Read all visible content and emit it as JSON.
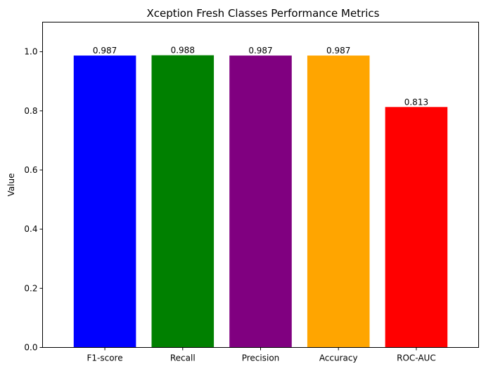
{
  "chart_data": {
    "type": "bar",
    "title": "Xception Fresh Classes Performance Metrics",
    "xlabel": "",
    "ylabel": "Value",
    "categories": [
      "F1-score",
      "Recall",
      "Precision",
      "Accuracy",
      "ROC-AUC"
    ],
    "values": [
      0.987,
      0.988,
      0.987,
      0.987,
      0.813
    ],
    "value_labels": [
      "0.987",
      "0.988",
      "0.987",
      "0.987",
      "0.813"
    ],
    "colors": [
      "#0000ff",
      "#008000",
      "#800080",
      "#ffa500",
      "#ff0000"
    ],
    "ylim": [
      0,
      1.1
    ],
    "yticks": [
      0.0,
      0.2,
      0.4,
      0.6,
      0.8,
      1.0
    ],
    "ytick_labels": [
      "0.0",
      "0.2",
      "0.4",
      "0.6",
      "0.8",
      "1.0"
    ],
    "grid": false,
    "legend": "none"
  }
}
